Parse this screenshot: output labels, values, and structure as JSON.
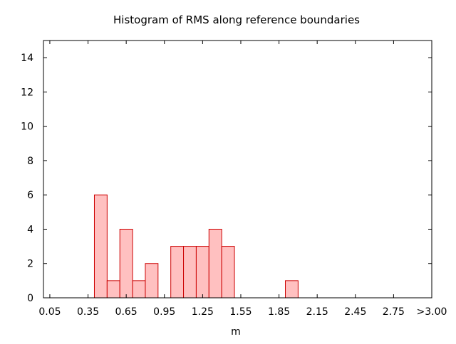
{
  "chart_data": {
    "type": "bar",
    "title": "Histogram of RMS along reference boundaries",
    "xlabel": "m",
    "ylabel": "",
    "x_ticks": [
      "0.05",
      "0.35",
      "0.65",
      "0.95",
      "1.25",
      "1.55",
      "1.85",
      "2.15",
      "2.45",
      "2.75",
      ">3.00"
    ],
    "y_ticks": [
      "0",
      "2",
      "4",
      "6",
      "8",
      "10",
      "12",
      "14"
    ],
    "xlim": [
      0.0,
      3.05
    ],
    "ylim": [
      0,
      15
    ],
    "bin_width": 0.1,
    "bins": [
      {
        "x0": 0.4,
        "x1": 0.5,
        "value": 6
      },
      {
        "x0": 0.5,
        "x1": 0.6,
        "value": 1
      },
      {
        "x0": 0.6,
        "x1": 0.7,
        "value": 4
      },
      {
        "x0": 0.7,
        "x1": 0.8,
        "value": 1
      },
      {
        "x0": 0.8,
        "x1": 0.9,
        "value": 2
      },
      {
        "x0": 1.0,
        "x1": 1.1,
        "value": 3
      },
      {
        "x0": 1.1,
        "x1": 1.2,
        "value": 3
      },
      {
        "x0": 1.2,
        "x1": 1.3,
        "value": 3
      },
      {
        "x0": 1.3,
        "x1": 1.4,
        "value": 4
      },
      {
        "x0": 1.4,
        "x1": 1.5,
        "value": 3
      },
      {
        "x0": 1.9,
        "x1": 2.0,
        "value": 1
      }
    ],
    "bar_fill": "#ffc0c0",
    "bar_stroke": "#cc0000",
    "grid": false
  }
}
